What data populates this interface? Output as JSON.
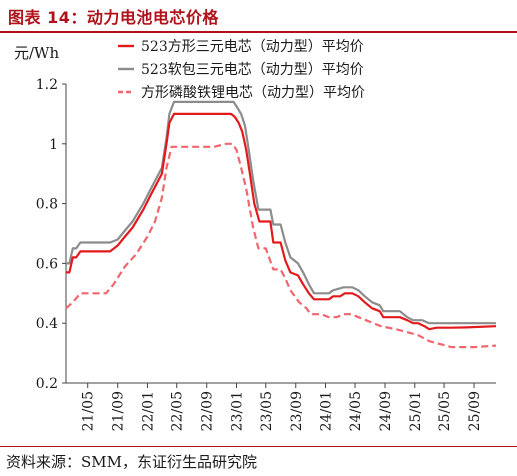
{
  "header": {
    "title": "图表 14：动力电池电芯价格",
    "unit": "元/Wh"
  },
  "footer": {
    "source": "资料来源：SMM，东证衍生品研究院"
  },
  "colors": {
    "title": "#b0121b",
    "series_1": "#e31a1c",
    "series_2": "#8c8c8c",
    "series_3": "#f0666e"
  },
  "chart_data": {
    "type": "line",
    "ylabel": "元/Wh",
    "ylim": [
      0.2,
      1.2
    ],
    "yticks": [
      0.2,
      0.4,
      0.6,
      0.8,
      1.0,
      1.2
    ],
    "ytick_labels": [
      "0.2",
      "0.4",
      "0.6",
      "0.8",
      "1",
      "1.2"
    ],
    "xlim": [
      "2021-02-01",
      "2025-11-30"
    ],
    "xtick_dates": [
      "2021-05-01",
      "2021-09-01",
      "2022-01-01",
      "2022-05-01",
      "2022-09-01",
      "2023-01-01",
      "2023-05-01",
      "2023-09-01",
      "2024-01-01",
      "2024-05-01",
      "2024-09-01",
      "2025-01-01",
      "2025-05-01",
      "2025-09-01"
    ],
    "xtick_labels": [
      "21/05",
      "21/09",
      "22/01",
      "22/05",
      "22/09",
      "23/01",
      "23/05",
      "23/09",
      "24/01",
      "24/05",
      "24/09",
      "25/01",
      "25/05",
      "25/09"
    ],
    "legend_position": "top-right",
    "series": [
      {
        "name": "523方形三元电芯（动力型）平均价",
        "style": "solid",
        "points": [
          [
            "2021-02-01",
            0.57
          ],
          [
            "2021-02-15",
            0.57
          ],
          [
            "2021-03-01",
            0.62
          ],
          [
            "2021-03-15",
            0.62
          ],
          [
            "2021-04-01",
            0.64
          ],
          [
            "2021-06-01",
            0.64
          ],
          [
            "2021-08-01",
            0.64
          ],
          [
            "2021-09-01",
            0.66
          ],
          [
            "2021-10-01",
            0.69
          ],
          [
            "2021-11-01",
            0.72
          ],
          [
            "2021-12-15",
            0.78
          ],
          [
            "2022-01-15",
            0.83
          ],
          [
            "2022-03-01",
            0.9
          ],
          [
            "2022-03-20",
            1.0
          ],
          [
            "2022-04-01",
            1.07
          ],
          [
            "2022-04-20",
            1.1
          ],
          [
            "2022-07-01",
            1.1
          ],
          [
            "2022-10-01",
            1.1
          ],
          [
            "2022-12-10",
            1.1
          ],
          [
            "2022-12-25",
            1.09
          ],
          [
            "2023-01-10",
            1.07
          ],
          [
            "2023-01-25",
            1.04
          ],
          [
            "2023-02-10",
            0.98
          ],
          [
            "2023-02-25",
            0.9
          ],
          [
            "2023-03-15",
            0.8
          ],
          [
            "2023-04-05",
            0.74
          ],
          [
            "2023-04-20",
            0.74
          ],
          [
            "2023-05-20",
            0.74
          ],
          [
            "2023-06-01",
            0.67
          ],
          [
            "2023-07-01",
            0.67
          ],
          [
            "2023-07-20",
            0.61
          ],
          [
            "2023-08-10",
            0.57
          ],
          [
            "2023-09-10",
            0.56
          ],
          [
            "2023-10-01",
            0.53
          ],
          [
            "2023-10-25",
            0.5
          ],
          [
            "2023-11-15",
            0.48
          ],
          [
            "2023-12-15",
            0.48
          ],
          [
            "2024-01-15",
            0.48
          ],
          [
            "2024-02-01",
            0.49
          ],
          [
            "2024-03-01",
            0.49
          ],
          [
            "2024-03-20",
            0.5
          ],
          [
            "2024-04-20",
            0.5
          ],
          [
            "2024-05-15",
            0.49
          ],
          [
            "2024-06-10",
            0.47
          ],
          [
            "2024-07-10",
            0.45
          ],
          [
            "2024-08-10",
            0.44
          ],
          [
            "2024-08-25",
            0.42
          ],
          [
            "2024-11-01",
            0.42
          ],
          [
            "2024-12-01",
            0.41
          ],
          [
            "2024-12-25",
            0.4
          ],
          [
            "2025-01-15",
            0.4
          ],
          [
            "2025-02-10",
            0.39
          ],
          [
            "2025-03-01",
            0.38
          ],
          [
            "2025-04-01",
            0.385
          ],
          [
            "2025-06-01",
            0.385
          ],
          [
            "2025-08-01",
            0.386
          ],
          [
            "2025-11-30",
            0.39
          ]
        ]
      },
      {
        "name": "523软包三元电芯（动力型）平均价",
        "style": "solid",
        "points": [
          [
            "2021-02-01",
            0.6
          ],
          [
            "2021-02-15",
            0.6
          ],
          [
            "2021-03-01",
            0.65
          ],
          [
            "2021-03-15",
            0.65
          ],
          [
            "2021-04-01",
            0.67
          ],
          [
            "2021-06-01",
            0.67
          ],
          [
            "2021-08-01",
            0.67
          ],
          [
            "2021-09-01",
            0.68
          ],
          [
            "2021-10-01",
            0.71
          ],
          [
            "2021-11-01",
            0.74
          ],
          [
            "2021-12-15",
            0.8
          ],
          [
            "2022-01-15",
            0.85
          ],
          [
            "2022-03-01",
            0.92
          ],
          [
            "2022-03-20",
            1.02
          ],
          [
            "2022-04-01",
            1.1
          ],
          [
            "2022-04-20",
            1.14
          ],
          [
            "2022-07-01",
            1.14
          ],
          [
            "2022-10-01",
            1.14
          ],
          [
            "2022-12-20",
            1.14
          ],
          [
            "2023-01-05",
            1.12
          ],
          [
            "2023-01-20",
            1.1
          ],
          [
            "2023-02-05",
            1.06
          ],
          [
            "2023-02-20",
            0.98
          ],
          [
            "2023-03-10",
            0.88
          ],
          [
            "2023-04-01",
            0.78
          ],
          [
            "2023-05-20",
            0.78
          ],
          [
            "2023-06-01",
            0.73
          ],
          [
            "2023-07-01",
            0.73
          ],
          [
            "2023-07-20",
            0.67
          ],
          [
            "2023-08-10",
            0.62
          ],
          [
            "2023-09-10",
            0.6
          ],
          [
            "2023-10-01",
            0.57
          ],
          [
            "2023-10-25",
            0.53
          ],
          [
            "2023-11-15",
            0.5
          ],
          [
            "2023-12-15",
            0.5
          ],
          [
            "2024-01-15",
            0.5
          ],
          [
            "2024-02-01",
            0.51
          ],
          [
            "2024-03-15",
            0.52
          ],
          [
            "2024-04-20",
            0.52
          ],
          [
            "2024-05-15",
            0.51
          ],
          [
            "2024-06-10",
            0.49
          ],
          [
            "2024-07-10",
            0.47
          ],
          [
            "2024-08-10",
            0.46
          ],
          [
            "2024-08-25",
            0.44
          ],
          [
            "2024-11-01",
            0.44
          ],
          [
            "2024-12-01",
            0.42
          ],
          [
            "2024-12-25",
            0.41
          ],
          [
            "2025-02-01",
            0.41
          ],
          [
            "2025-03-01",
            0.4
          ],
          [
            "2025-06-01",
            0.4
          ],
          [
            "2025-09-01",
            0.4
          ],
          [
            "2025-11-30",
            0.4
          ]
        ]
      },
      {
        "name": "方形磷酸铁锂电芯（动力型）平均价",
        "style": "dashed",
        "points": [
          [
            "2021-02-01",
            0.45
          ],
          [
            "2021-03-01",
            0.47
          ],
          [
            "2021-04-01",
            0.5
          ],
          [
            "2021-06-01",
            0.5
          ],
          [
            "2021-07-15",
            0.5
          ],
          [
            "2021-08-15",
            0.53
          ],
          [
            "2021-10-01",
            0.59
          ],
          [
            "2021-11-15",
            0.63
          ],
          [
            "2022-01-01",
            0.69
          ],
          [
            "2022-02-01",
            0.74
          ],
          [
            "2022-03-01",
            0.82
          ],
          [
            "2022-03-20",
            0.92
          ],
          [
            "2022-04-10",
            0.99
          ],
          [
            "2022-07-01",
            0.99
          ],
          [
            "2022-10-01",
            0.99
          ],
          [
            "2022-11-20",
            1.0
          ],
          [
            "2022-12-15",
            1.0
          ],
          [
            "2023-01-01",
            0.98
          ],
          [
            "2023-01-20",
            0.92
          ],
          [
            "2023-02-10",
            0.85
          ],
          [
            "2023-03-10",
            0.72
          ],
          [
            "2023-04-01",
            0.65
          ],
          [
            "2023-05-01",
            0.65
          ],
          [
            "2023-06-01",
            0.58
          ],
          [
            "2023-07-01",
            0.58
          ],
          [
            "2023-07-20",
            0.55
          ],
          [
            "2023-08-10",
            0.51
          ],
          [
            "2023-09-15",
            0.47
          ],
          [
            "2023-10-15",
            0.45
          ],
          [
            "2023-11-01",
            0.43
          ],
          [
            "2023-12-15",
            0.43
          ],
          [
            "2024-01-15",
            0.42
          ],
          [
            "2024-02-15",
            0.42
          ],
          [
            "2024-03-15",
            0.43
          ],
          [
            "2024-04-15",
            0.43
          ],
          [
            "2024-05-15",
            0.42
          ],
          [
            "2024-06-15",
            0.41
          ],
          [
            "2024-07-15",
            0.4
          ],
          [
            "2024-08-15",
            0.39
          ],
          [
            "2024-10-15",
            0.38
          ],
          [
            "2024-12-01",
            0.37
          ],
          [
            "2025-01-15",
            0.36
          ],
          [
            "2025-03-01",
            0.34
          ],
          [
            "2025-04-15",
            0.33
          ],
          [
            "2025-06-01",
            0.32
          ],
          [
            "2025-09-01",
            0.32
          ],
          [
            "2025-11-30",
            0.325
          ]
        ]
      }
    ]
  }
}
